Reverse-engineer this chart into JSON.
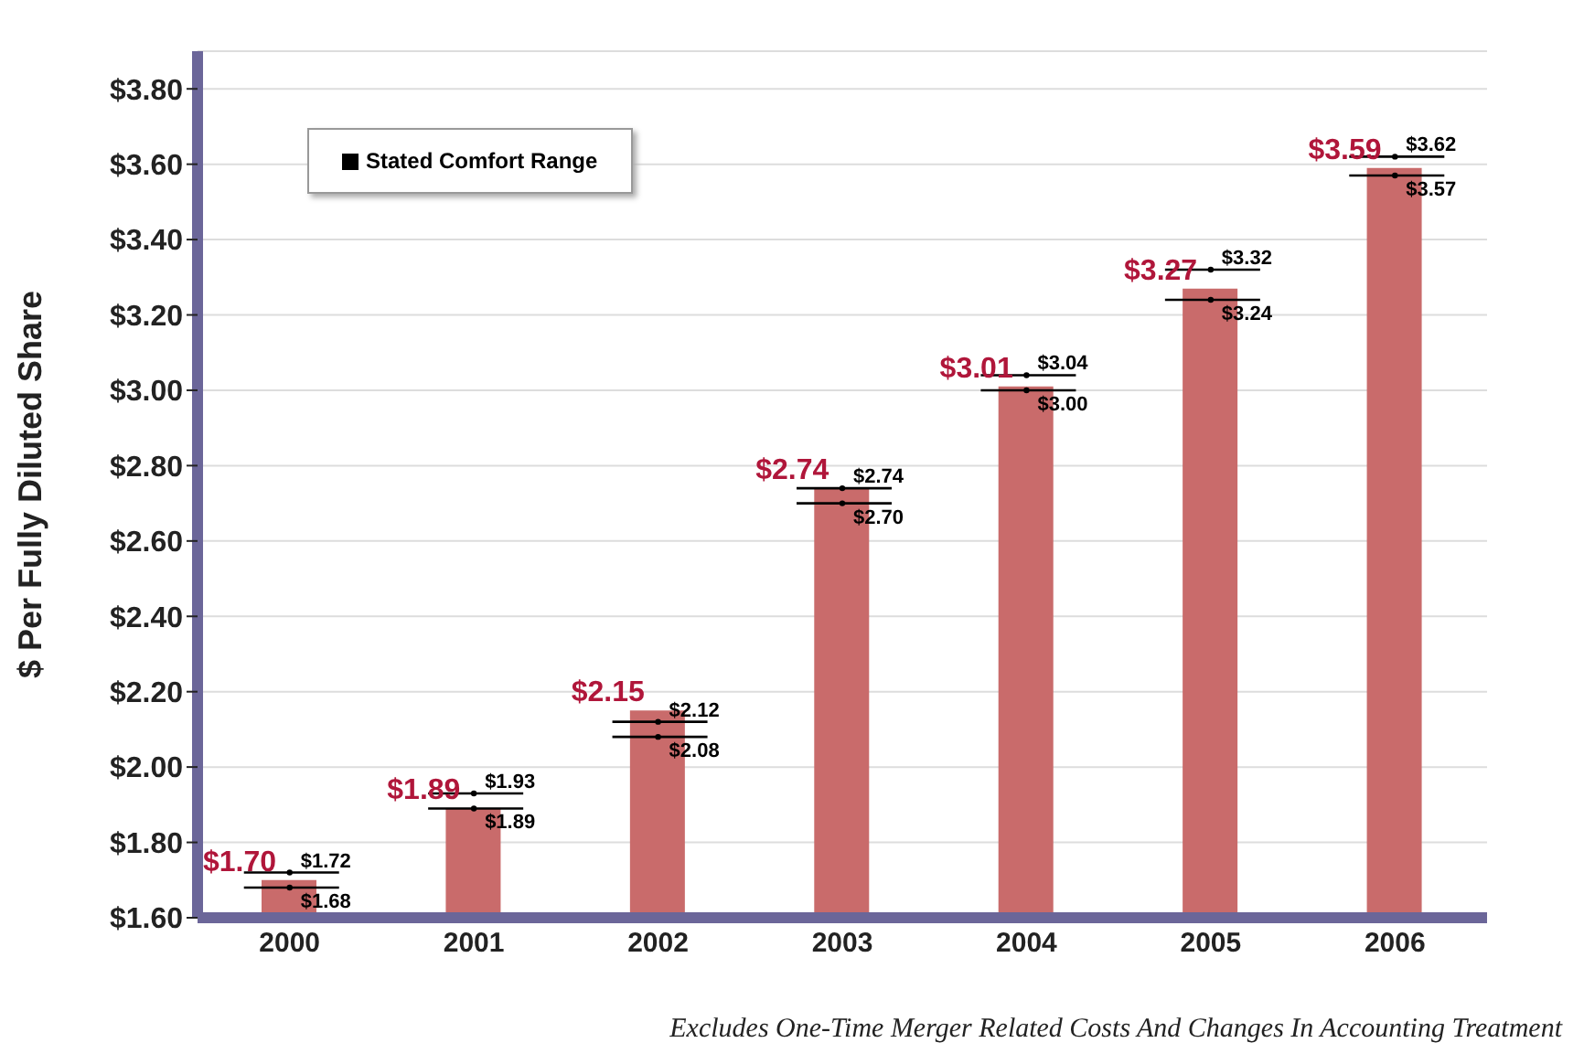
{
  "chart_data": {
    "type": "bar",
    "ylabel": "$ Per Fully Diluted Share",
    "categories": [
      "2000",
      "2001",
      "2002",
      "2003",
      "2004",
      "2005",
      "2006"
    ],
    "series": [
      {
        "color": "#c96b6b",
        "values": [
          1.7,
          1.89,
          2.15,
          2.74,
          3.01,
          3.27,
          3.59
        ],
        "value_labels": [
          "$1.70",
          "$1.89",
          "$2.15",
          "$2.74",
          "$3.01",
          "$3.27",
          "$3.59"
        ]
      },
      {
        "type": "scatter",
        "name": "Stated Comfort Range",
        "color": "#000000",
        "values": [
          1.72,
          1.93,
          2.12,
          2.74,
          3.04,
          3.32,
          3.62
        ],
        "value_labels": [
          "$1.72",
          "$1.93",
          "$2.12",
          "$2.74",
          "$3.04",
          "$3.32",
          "$3.62"
        ]
      },
      {
        "type": "scatter",
        "color": "#000000",
        "values": [
          1.68,
          1.89,
          2.08,
          2.7,
          3.0,
          3.24,
          3.57
        ],
        "value_labels": [
          "$1.68",
          "$1.89",
          "$2.08",
          "$2.70",
          "$3.00",
          "$3.24",
          "$3.57"
        ]
      }
    ],
    "ylim": [
      1.6,
      3.9
    ],
    "yticks": [
      {
        "value": 1.6,
        "label": "$1.60"
      },
      {
        "value": 1.8,
        "label": "$1.80"
      },
      {
        "value": 2.0,
        "label": "$2.00"
      },
      {
        "value": 2.2,
        "label": "$2.20"
      },
      {
        "value": 2.4,
        "label": "$2.40"
      },
      {
        "value": 2.6,
        "label": "$2.60"
      },
      {
        "value": 2.8,
        "label": "$2.80"
      },
      {
        "value": 3.0,
        "label": "$3.00"
      },
      {
        "value": 3.2,
        "label": "$3.20"
      },
      {
        "value": 3.4,
        "label": "$3.40"
      },
      {
        "value": 3.6,
        "label": "$3.60"
      },
      {
        "value": 3.8,
        "label": "$3.80"
      }
    ],
    "grid": "y",
    "legend": "top left",
    "annotations": [
      "Excludes One-Time Merger Related Costs And Changes In Accounting Treatment"
    ]
  }
}
